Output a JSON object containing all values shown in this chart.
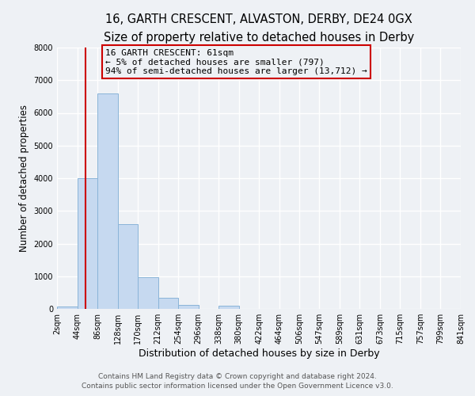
{
  "title": "16, GARTH CRESCENT, ALVASTON, DERBY, DE24 0GX",
  "subtitle": "Size of property relative to detached houses in Derby",
  "xlabel": "Distribution of detached houses by size in Derby",
  "ylabel": "Number of detached properties",
  "bar_heights": [
    75,
    4000,
    6600,
    2600,
    970,
    330,
    120,
    0,
    100,
    0,
    0,
    0,
    0,
    0,
    0,
    0,
    0,
    0,
    0,
    0
  ],
  "bar_edges": [
    2,
    44,
    86,
    128,
    170,
    212,
    254,
    296,
    338,
    380,
    422,
    464,
    506,
    547,
    589,
    631,
    673,
    715,
    757,
    799,
    841
  ],
  "tick_labels": [
    "2sqm",
    "44sqm",
    "86sqm",
    "128sqm",
    "170sqm",
    "212sqm",
    "254sqm",
    "296sqm",
    "338sqm",
    "380sqm",
    "422sqm",
    "464sqm",
    "506sqm",
    "547sqm",
    "589sqm",
    "631sqm",
    "673sqm",
    "715sqm",
    "757sqm",
    "799sqm",
    "841sqm"
  ],
  "bar_color": "#c6d9f0",
  "bar_edgecolor": "#8ab4d8",
  "property_line_x": 61,
  "property_line_color": "#cc0000",
  "annotation_text_line1": "16 GARTH CRESCENT: 61sqm",
  "annotation_text_line2": "← 5% of detached houses are smaller (797)",
  "annotation_text_line3": "94% of semi-detached houses are larger (13,712) →",
  "annotation_box_edgecolor": "#cc0000",
  "ylim": [
    0,
    8000
  ],
  "yticks": [
    0,
    1000,
    2000,
    3000,
    4000,
    5000,
    6000,
    7000,
    8000
  ],
  "footer_line1": "Contains HM Land Registry data © Crown copyright and database right 2024.",
  "footer_line2": "Contains public sector information licensed under the Open Government Licence v3.0.",
  "background_color": "#eef1f5",
  "plot_bg_color": "#eef1f5",
  "grid_color": "#ffffff",
  "title_fontsize": 10.5,
  "subtitle_fontsize": 9,
  "tick_fontsize": 7,
  "ylabel_fontsize": 8.5,
  "xlabel_fontsize": 9,
  "annotation_fontsize": 8,
  "footer_fontsize": 6.5
}
